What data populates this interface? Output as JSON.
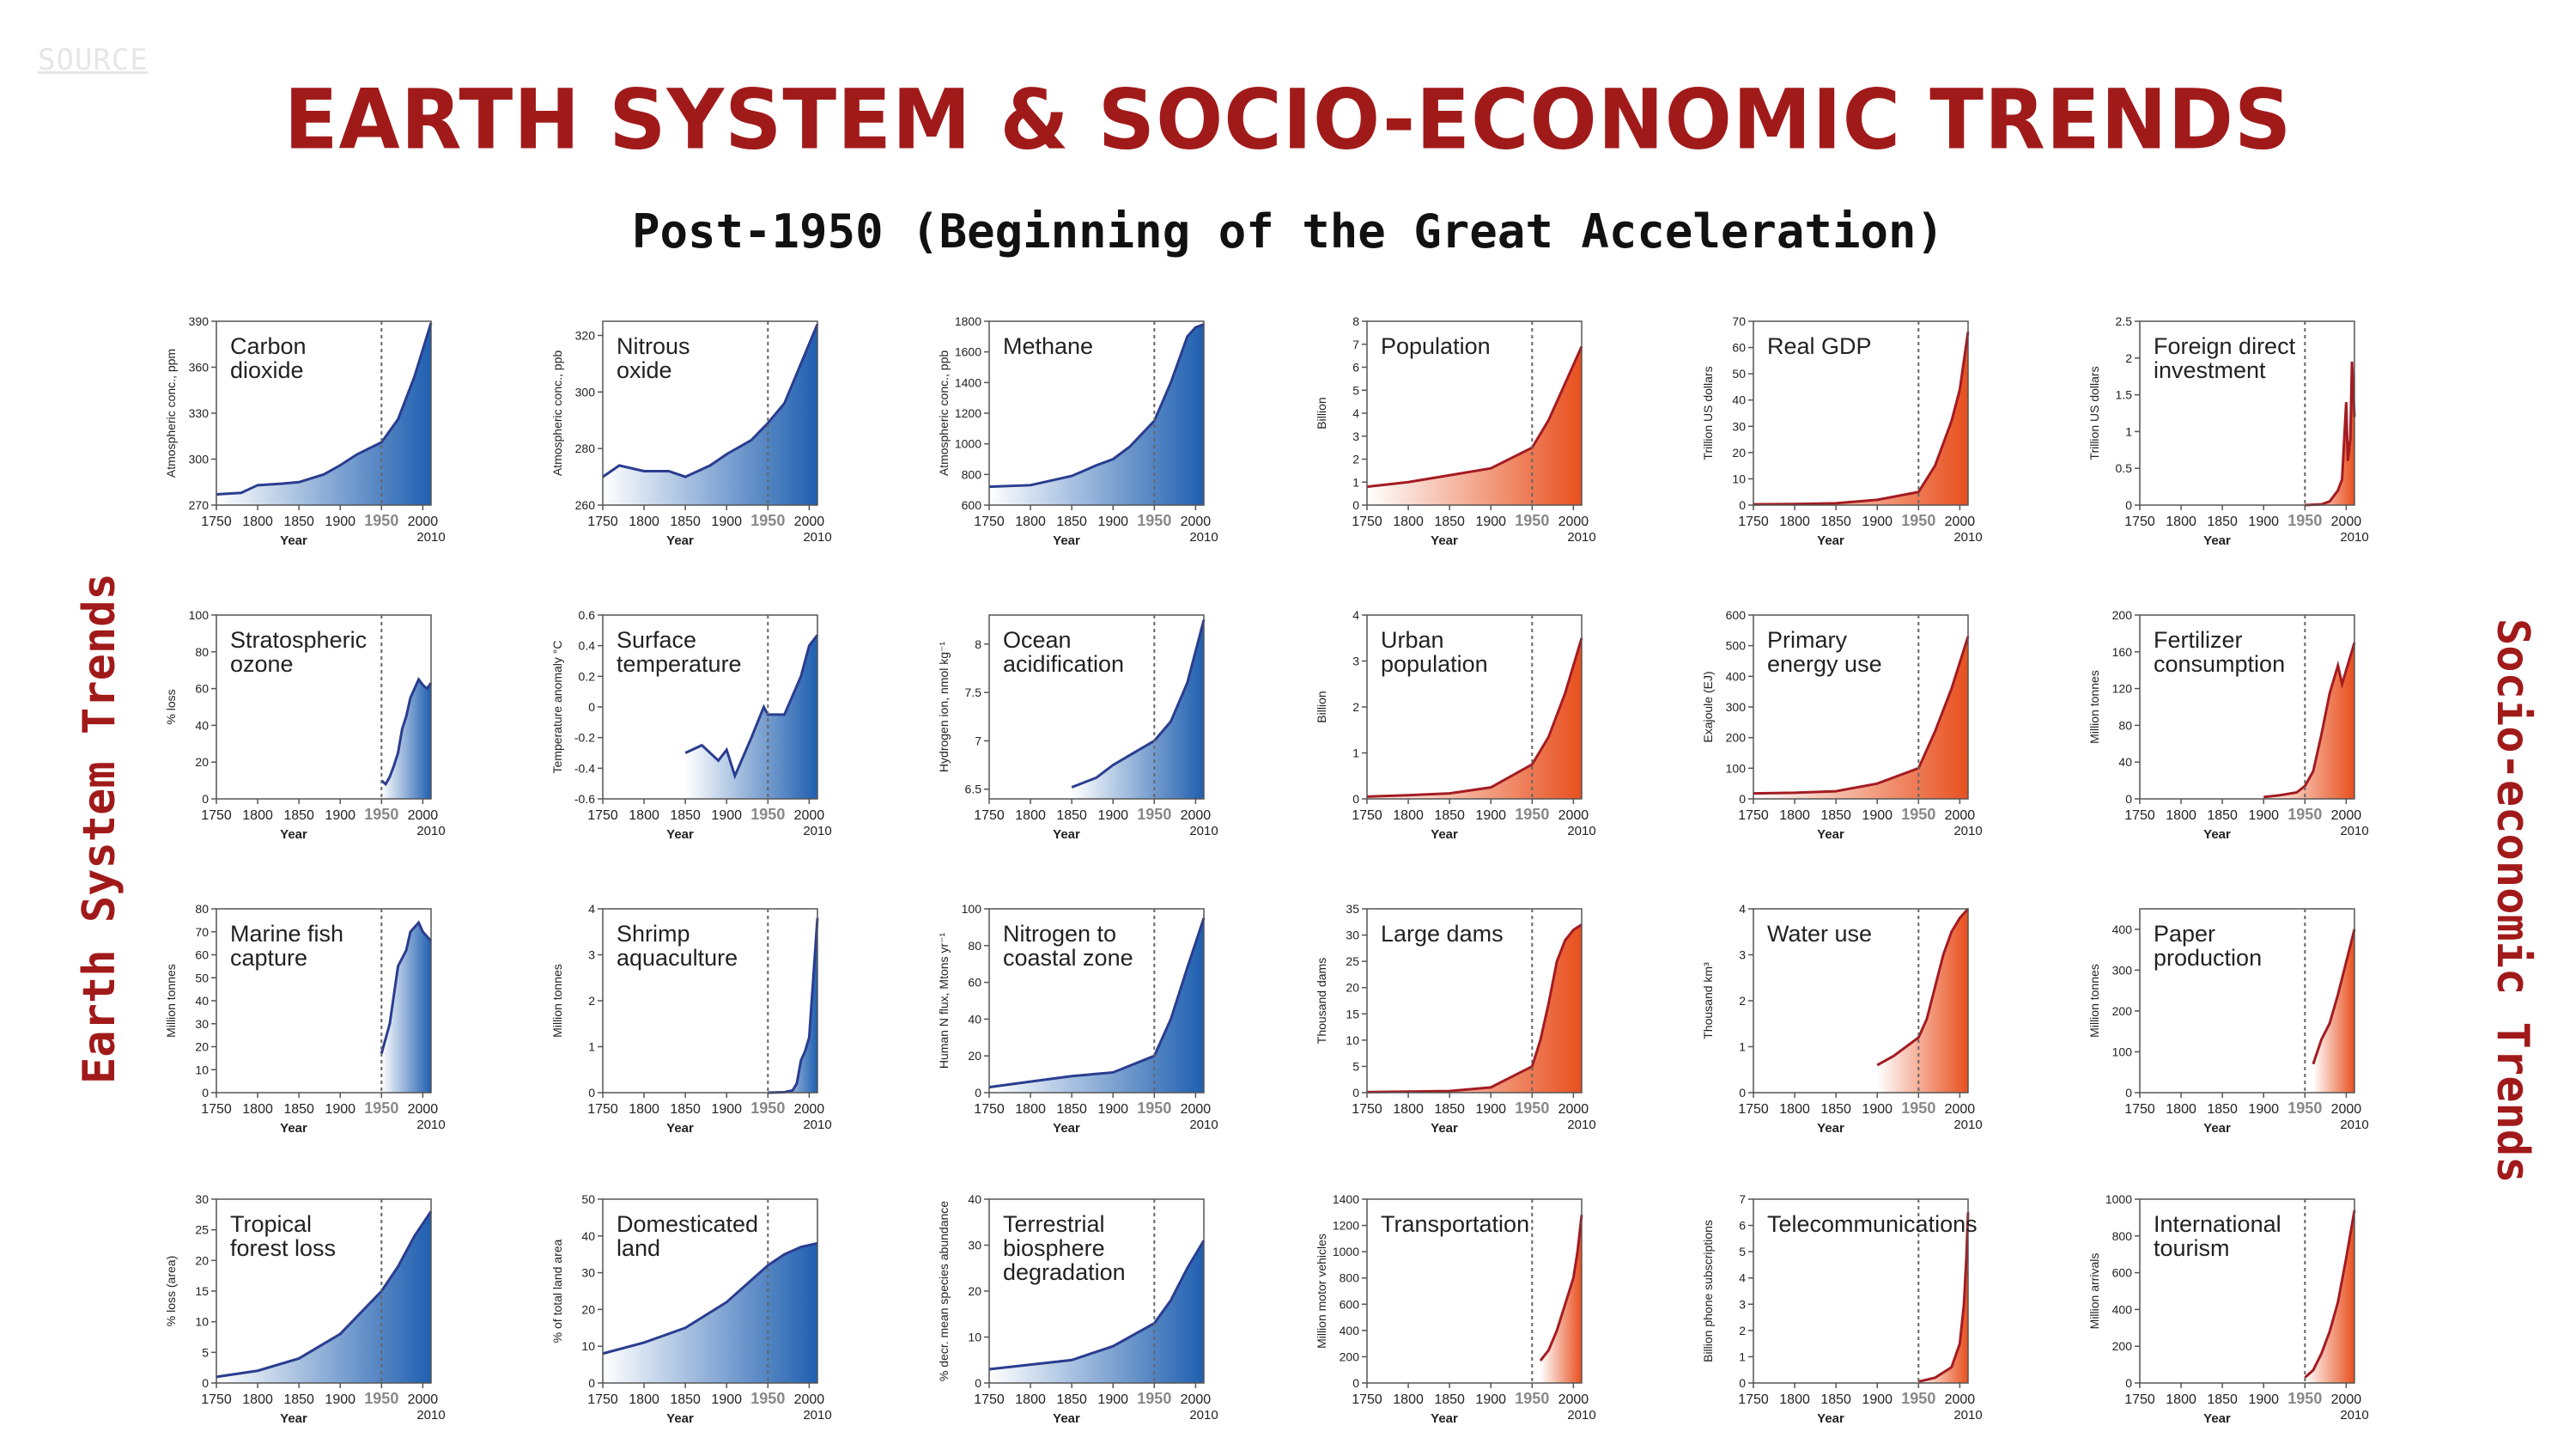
{
  "source_label": "SOURCE",
  "title": "EARTH SYSTEM & SOCIO-ECONOMIC TRENDS",
  "subtitle": "Post-1950 (Beginning of the Great Acceleration)",
  "side_labels": {
    "left": "Earth System Trends",
    "right": "Socio-economic Trends"
  },
  "colors": {
    "earth": "#2a3d8f",
    "earth_fill": "#1f5fb0",
    "socio": "#a31c22",
    "socio_fill": "#e8501e",
    "title": "#a11a1a"
  },
  "x_ticks": [
    "1750",
    "1800",
    "1850",
    "1900",
    "1950",
    "2000"
  ],
  "x_end_label": "2010",
  "x_axis_label": "Year",
  "chart_data": [
    {
      "type": "area",
      "group": "earth",
      "title": [
        "Carbon",
        "dioxide"
      ],
      "ylabel": "Atmospheric conc., ppm",
      "ylim": [
        270,
        390
      ],
      "yticks": [
        270,
        300,
        330,
        360,
        390
      ],
      "x": [
        1750,
        1780,
        1800,
        1830,
        1850,
        1880,
        1900,
        1920,
        1950,
        1970,
        1990,
        2010
      ],
      "values": [
        277,
        278,
        283,
        284,
        285,
        290,
        296,
        303,
        311,
        326,
        354,
        389
      ]
    },
    {
      "type": "area",
      "group": "earth",
      "title": [
        "Nitrous",
        "oxide"
      ],
      "ylabel": "Atmospheric conc., ppb",
      "ylim": [
        260,
        325
      ],
      "yticks": [
        260,
        280,
        300,
        320
      ],
      "x": [
        1750,
        1770,
        1800,
        1830,
        1850,
        1880,
        1900,
        1930,
        1950,
        1970,
        1990,
        2010
      ],
      "values": [
        270,
        274,
        272,
        272,
        270,
        274,
        278,
        283,
        289,
        296,
        310,
        324
      ]
    },
    {
      "type": "area",
      "group": "earth",
      "title": [
        "Methane"
      ],
      "ylabel": "Atmospheric conc., ppb",
      "ylim": [
        600,
        1800
      ],
      "yticks": [
        600,
        800,
        1000,
        1200,
        1400,
        1600,
        1800
      ],
      "x": [
        1750,
        1800,
        1850,
        1880,
        1900,
        1920,
        1950,
        1970,
        1990,
        2000,
        2010
      ],
      "values": [
        720,
        730,
        790,
        860,
        900,
        980,
        1150,
        1400,
        1700,
        1760,
        1780
      ]
    },
    {
      "type": "area",
      "group": "socio",
      "title": [
        "Population"
      ],
      "ylabel": "Billion",
      "ylim": [
        0,
        8
      ],
      "yticks": [
        0,
        1,
        2,
        3,
        4,
        5,
        6,
        7,
        8
      ],
      "x": [
        1750,
        1800,
        1850,
        1900,
        1950,
        1970,
        1990,
        2010
      ],
      "values": [
        0.8,
        1.0,
        1.3,
        1.6,
        2.5,
        3.7,
        5.3,
        6.9
      ]
    },
    {
      "type": "area",
      "group": "socio",
      "title": [
        "Real GDP"
      ],
      "ylabel": "Trillion US dollars",
      "ylim": [
        0,
        70
      ],
      "yticks": [
        0,
        10,
        20,
        30,
        40,
        50,
        60,
        70
      ],
      "x": [
        1750,
        1800,
        1850,
        1900,
        1950,
        1970,
        1990,
        2000,
        2010
      ],
      "values": [
        0.3,
        0.4,
        0.7,
        2,
        5,
        15,
        32,
        44,
        66
      ]
    },
    {
      "type": "area",
      "group": "socio",
      "title": [
        "Foreign direct",
        "investment"
      ],
      "ylabel": "Trillion US dollars",
      "ylim": [
        0,
        2.5
      ],
      "yticks": [
        0,
        0.5,
        1,
        1.5,
        2,
        2.5
      ],
      "x": [
        1950,
        1970,
        1980,
        1990,
        1995,
        2000,
        2002,
        2005,
        2007,
        2008,
        2010
      ],
      "values": [
        0,
        0.01,
        0.05,
        0.2,
        0.35,
        1.4,
        0.6,
        0.9,
        1.95,
        1.7,
        1.2
      ]
    },
    {
      "type": "area",
      "group": "earth",
      "title": [
        "Stratospheric",
        "ozone"
      ],
      "ylabel": "% loss",
      "ylim": [
        0,
        100
      ],
      "yticks": [
        0,
        20,
        40,
        60,
        80,
        100
      ],
      "x": [
        1950,
        1955,
        1960,
        1965,
        1970,
        1975,
        1980,
        1985,
        1990,
        1995,
        2000,
        2005,
        2010
      ],
      "values": [
        10,
        8,
        12,
        18,
        25,
        38,
        45,
        55,
        60,
        65,
        62,
        60,
        63
      ]
    },
    {
      "type": "area",
      "group": "earth",
      "title": [
        "Surface",
        "temperature"
      ],
      "ylabel": "Temperature anomaly °C",
      "ylim": [
        -0.6,
        0.6
      ],
      "yticks": [
        -0.6,
        -0.4,
        -0.2,
        0,
        0.2,
        0.4,
        0.6
      ],
      "x": [
        1850,
        1870,
        1890,
        1900,
        1910,
        1930,
        1945,
        1950,
        1970,
        1990,
        2000,
        2010
      ],
      "values": [
        -0.3,
        -0.25,
        -0.35,
        -0.28,
        -0.45,
        -0.2,
        0.0,
        -0.05,
        -0.05,
        0.2,
        0.4,
        0.47
      ]
    },
    {
      "type": "area",
      "group": "earth",
      "title": [
        "Ocean",
        "acidification"
      ],
      "ylabel": "Hydrogen ion, nmol kg⁻¹",
      "ylim": [
        6.4,
        8.3
      ],
      "yticks": [
        6.5,
        7.0,
        7.5,
        8.0
      ],
      "x": [
        1850,
        1880,
        1900,
        1920,
        1950,
        1970,
        1990,
        2010
      ],
      "values": [
        6.52,
        6.62,
        6.75,
        6.85,
        7.0,
        7.2,
        7.6,
        8.25
      ]
    },
    {
      "type": "area",
      "group": "socio",
      "title": [
        "Urban",
        "population"
      ],
      "ylabel": "Billion",
      "ylim": [
        0,
        4
      ],
      "yticks": [
        0,
        1,
        2,
        3,
        4
      ],
      "x": [
        1750,
        1800,
        1850,
        1900,
        1950,
        1970,
        1990,
        2010
      ],
      "values": [
        0.05,
        0.08,
        0.12,
        0.25,
        0.75,
        1.35,
        2.3,
        3.5
      ]
    },
    {
      "type": "area",
      "group": "socio",
      "title": [
        "Primary",
        "energy use"
      ],
      "ylabel": "Exajoule (EJ)",
      "ylim": [
        0,
        600
      ],
      "yticks": [
        0,
        100,
        200,
        300,
        400,
        500,
        600
      ],
      "x": [
        1750,
        1800,
        1850,
        1900,
        1950,
        1970,
        1990,
        2010
      ],
      "values": [
        18,
        20,
        25,
        50,
        100,
        220,
        360,
        530
      ]
    },
    {
      "type": "area",
      "group": "socio",
      "title": [
        "Fertilizer",
        "consumption"
      ],
      "ylabel": "Million tonnes",
      "ylim": [
        0,
        200
      ],
      "yticks": [
        0,
        40,
        80,
        120,
        160,
        200
      ],
      "x": [
        1900,
        1920,
        1940,
        1950,
        1960,
        1970,
        1980,
        1985,
        1990,
        1995,
        2000,
        2005,
        2010
      ],
      "values": [
        2,
        4,
        7,
        14,
        30,
        70,
        115,
        130,
        145,
        125,
        140,
        155,
        170
      ]
    },
    {
      "type": "area",
      "group": "earth",
      "title": [
        "Marine fish",
        "capture"
      ],
      "ylabel": "Million tonnes",
      "ylim": [
        0,
        80
      ],
      "yticks": [
        0,
        10,
        20,
        30,
        40,
        50,
        60,
        70,
        80
      ],
      "x": [
        1950,
        1960,
        1970,
        1980,
        1985,
        1990,
        1995,
        2000,
        2005,
        2010
      ],
      "values": [
        17,
        30,
        55,
        62,
        70,
        72,
        74,
        70,
        68,
        66
      ]
    },
    {
      "type": "area",
      "group": "earth",
      "title": [
        "Shrimp",
        "aquaculture"
      ],
      "ylabel": "Million tonnes",
      "ylim": [
        0,
        4
      ],
      "yticks": [
        0,
        1,
        2,
        3,
        4
      ],
      "x": [
        1950,
        1970,
        1980,
        1985,
        1990,
        1995,
        2000,
        2005,
        2010
      ],
      "values": [
        0,
        0.01,
        0.05,
        0.2,
        0.7,
        0.9,
        1.2,
        2.5,
        3.8
      ]
    },
    {
      "type": "area",
      "group": "earth",
      "title": [
        "Nitrogen to",
        "coastal zone"
      ],
      "ylabel": "Human N flux, Mtons yr⁻¹",
      "ylim": [
        0,
        100
      ],
      "yticks": [
        0,
        20,
        40,
        60,
        80,
        100
      ],
      "x": [
        1750,
        1800,
        1850,
        1900,
        1950,
        1970,
        1990,
        2010
      ],
      "values": [
        3,
        6,
        9,
        11,
        20,
        40,
        68,
        95
      ]
    },
    {
      "type": "area",
      "group": "socio",
      "title": [
        "Large dams"
      ],
      "ylabel": "Thousand dams",
      "ylim": [
        0,
        35
      ],
      "yticks": [
        0,
        5,
        10,
        15,
        20,
        25,
        30,
        35
      ],
      "x": [
        1750,
        1800,
        1850,
        1900,
        1950,
        1960,
        1970,
        1980,
        1990,
        2000,
        2010
      ],
      "values": [
        0.1,
        0.2,
        0.3,
        1,
        5,
        10,
        17,
        25,
        29,
        31,
        32
      ]
    },
    {
      "type": "area",
      "group": "socio",
      "title": [
        "Water use"
      ],
      "ylabel": "Thousand km³",
      "ylim": [
        0,
        4
      ],
      "yticks": [
        0,
        1,
        2,
        3,
        4
      ],
      "x": [
        1900,
        1920,
        1950,
        1960,
        1970,
        1980,
        1990,
        2000,
        2010
      ],
      "values": [
        0.6,
        0.8,
        1.2,
        1.6,
        2.3,
        3.0,
        3.5,
        3.8,
        4.0
      ]
    },
    {
      "type": "area",
      "group": "socio",
      "title": [
        "Paper",
        "production"
      ],
      "ylabel": "Million tonnes",
      "ylim": [
        0,
        450
      ],
      "yticks": [
        0,
        100,
        200,
        300,
        400
      ],
      "x": [
        1960,
        1970,
        1980,
        1990,
        2000,
        2010
      ],
      "values": [
        70,
        130,
        170,
        240,
        320,
        400
      ]
    },
    {
      "type": "area",
      "group": "earth",
      "title": [
        "Tropical",
        "forest loss"
      ],
      "ylabel": "% loss (area)",
      "ylim": [
        0,
        30
      ],
      "yticks": [
        0,
        5,
        10,
        15,
        20,
        25,
        30
      ],
      "x": [
        1750,
        1800,
        1850,
        1900,
        1950,
        1970,
        1990,
        2010
      ],
      "values": [
        1,
        2,
        4,
        8,
        15,
        19,
        24,
        28
      ]
    },
    {
      "type": "area",
      "group": "earth",
      "title": [
        "Domesticated",
        "land"
      ],
      "ylabel": "% of total land area",
      "ylim": [
        0,
        50
      ],
      "yticks": [
        0,
        10,
        20,
        30,
        40,
        50
      ],
      "x": [
        1750,
        1800,
        1850,
        1900,
        1950,
        1970,
        1990,
        2010
      ],
      "values": [
        8,
        11,
        15,
        22,
        32,
        35,
        37,
        38
      ]
    },
    {
      "type": "area",
      "group": "earth",
      "title": [
        "Terrestrial",
        "biosphere",
        "degradation"
      ],
      "ylabel": "% decr. mean species abundance",
      "ylim": [
        0,
        40
      ],
      "yticks": [
        0,
        10,
        20,
        30,
        40
      ],
      "x": [
        1750,
        1800,
        1850,
        1900,
        1950,
        1970,
        1990,
        2010
      ],
      "values": [
        3,
        4,
        5,
        8,
        13,
        18,
        25,
        31
      ]
    },
    {
      "type": "area",
      "group": "socio",
      "title": [
        "Transportation"
      ],
      "ylabel": "Million motor vehicles",
      "ylim": [
        0,
        1400
      ],
      "yticks": [
        0,
        200,
        400,
        600,
        800,
        1000,
        1200,
        1400
      ],
      "x": [
        1960,
        1970,
        1980,
        1990,
        2000,
        2005,
        2010
      ],
      "values": [
        170,
        250,
        400,
        600,
        800,
        1000,
        1280
      ]
    },
    {
      "type": "area",
      "group": "socio",
      "title": [
        "Telecommunications"
      ],
      "ylabel": "Billion phone subscriptions",
      "ylim": [
        0,
        7
      ],
      "yticks": [
        0,
        1,
        2,
        3,
        4,
        5,
        6,
        7
      ],
      "x": [
        1950,
        1970,
        1990,
        2000,
        2005,
        2008,
        2010
      ],
      "values": [
        0.05,
        0.2,
        0.6,
        1.5,
        3,
        4.8,
        6.5
      ]
    },
    {
      "type": "area",
      "group": "socio",
      "title": [
        "International",
        "tourism"
      ],
      "ylabel": "Million arrivals",
      "ylim": [
        0,
        1000
      ],
      "yticks": [
        0,
        200,
        400,
        600,
        800,
        1000
      ],
      "x": [
        1950,
        1960,
        1970,
        1980,
        1990,
        2000,
        2010
      ],
      "values": [
        30,
        70,
        160,
        280,
        440,
        680,
        940
      ]
    }
  ]
}
